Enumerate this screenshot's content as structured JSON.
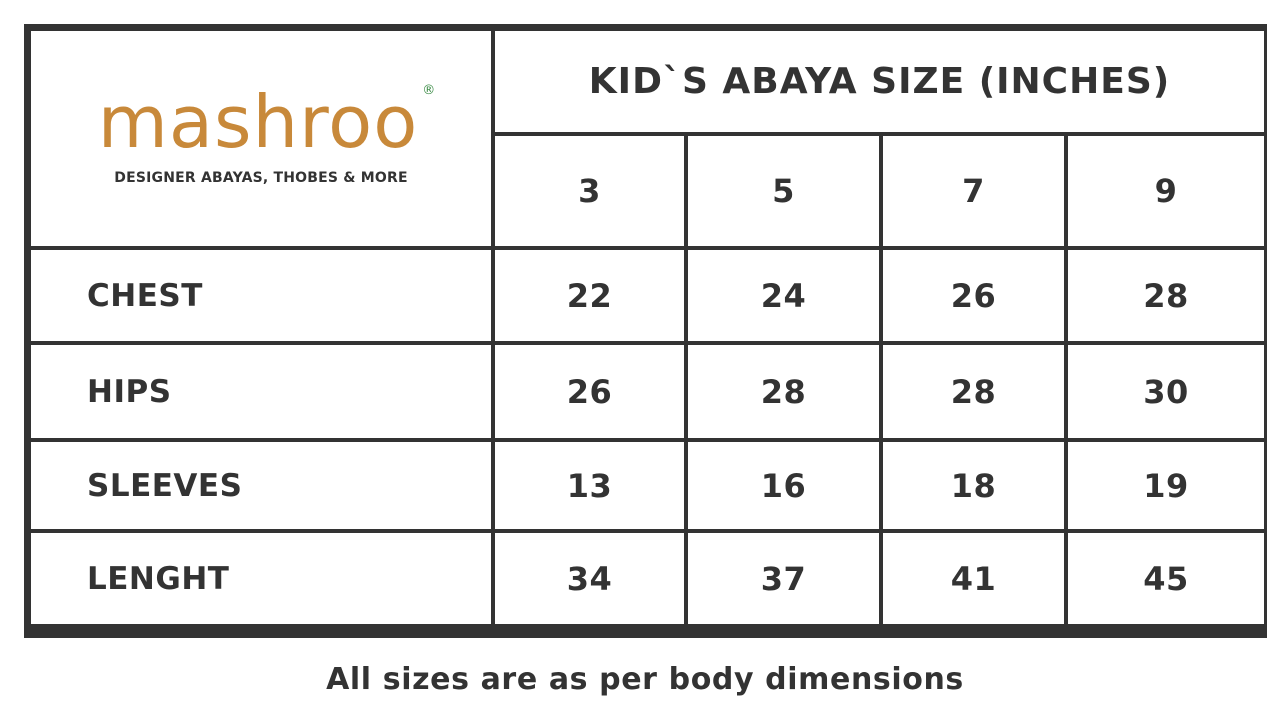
{
  "brand": {
    "logo_text": "mashroo",
    "registered_mark": "®",
    "tagline": "DESIGNER ABAYAS, THOBES & MORE"
  },
  "table": {
    "title": "KID`S ABAYA SIZE (INCHES)",
    "sizes": [
      "3",
      "5",
      "7",
      "9"
    ],
    "rows": [
      {
        "label": "CHEST",
        "values": [
          "22",
          "24",
          "26",
          "28"
        ]
      },
      {
        "label": "HIPS",
        "values": [
          "26",
          "28",
          "28",
          "30"
        ]
      },
      {
        "label": "SLEEVES",
        "values": [
          "13",
          "16",
          "18",
          "19"
        ]
      },
      {
        "label": "LENGHT",
        "values": [
          "34",
          "37",
          "41",
          "45"
        ]
      }
    ]
  },
  "footer_note": "All sizes are as per body dimensions",
  "colors": {
    "brand": "#c8893a",
    "text": "#333333",
    "border": "#333333",
    "registered": "#3a8b45"
  }
}
